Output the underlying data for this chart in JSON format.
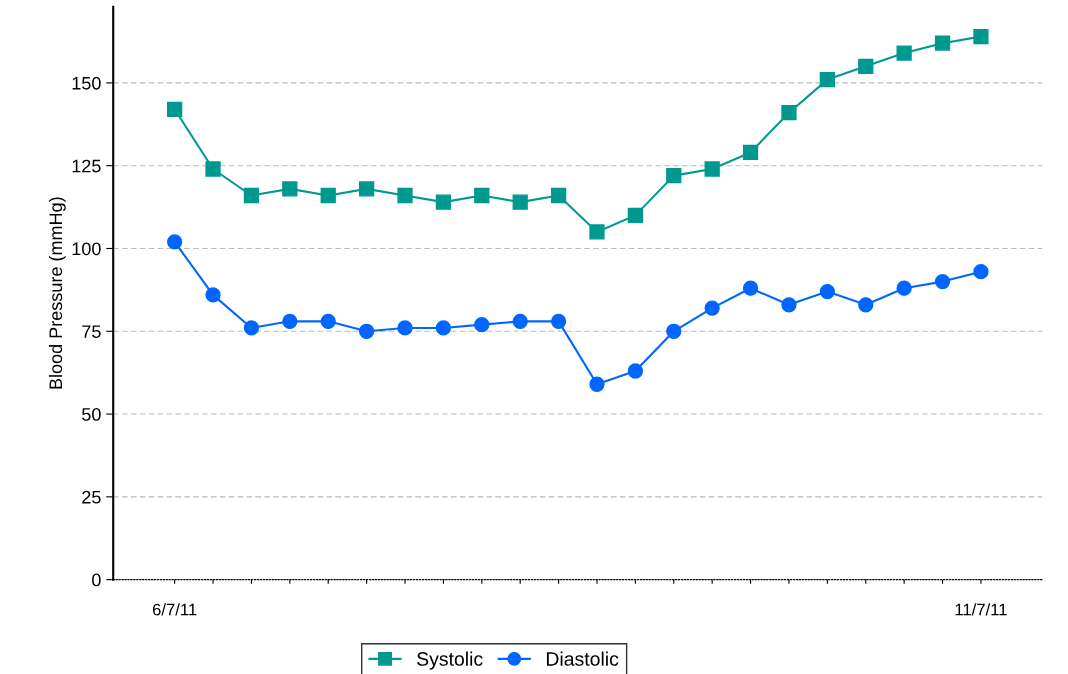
{
  "chart_data": {
    "type": "line",
    "ylabel": "Blood Pressure (mmHg)",
    "categories": [
      "6/7/11",
      null,
      null,
      null,
      null,
      null,
      null,
      null,
      null,
      null,
      null,
      null,
      null,
      null,
      null,
      null,
      null,
      null,
      null,
      null,
      null,
      "11/7/11"
    ],
    "series": [
      {
        "name": "Systolic",
        "color": "#009990",
        "marker": "square",
        "values": [
          142,
          124,
          116,
          118,
          116,
          118,
          116,
          114,
          116,
          114,
          116,
          105,
          110,
          122,
          124,
          129,
          141,
          151,
          155,
          159,
          162,
          164
        ]
      },
      {
        "name": "Diastolic",
        "color": "#0066ff",
        "marker": "circle",
        "values": [
          102,
          86,
          76,
          78,
          78,
          75,
          76,
          76,
          77,
          78,
          78,
          59,
          63,
          75,
          82,
          88,
          83,
          87,
          83,
          88,
          90,
          93
        ]
      }
    ],
    "ylim": [
      0,
      173
    ],
    "yticks": [
      0,
      25,
      50,
      75,
      100,
      125,
      150
    ],
    "grid": "y",
    "legend": "bottom",
    "line_style": "solid"
  }
}
